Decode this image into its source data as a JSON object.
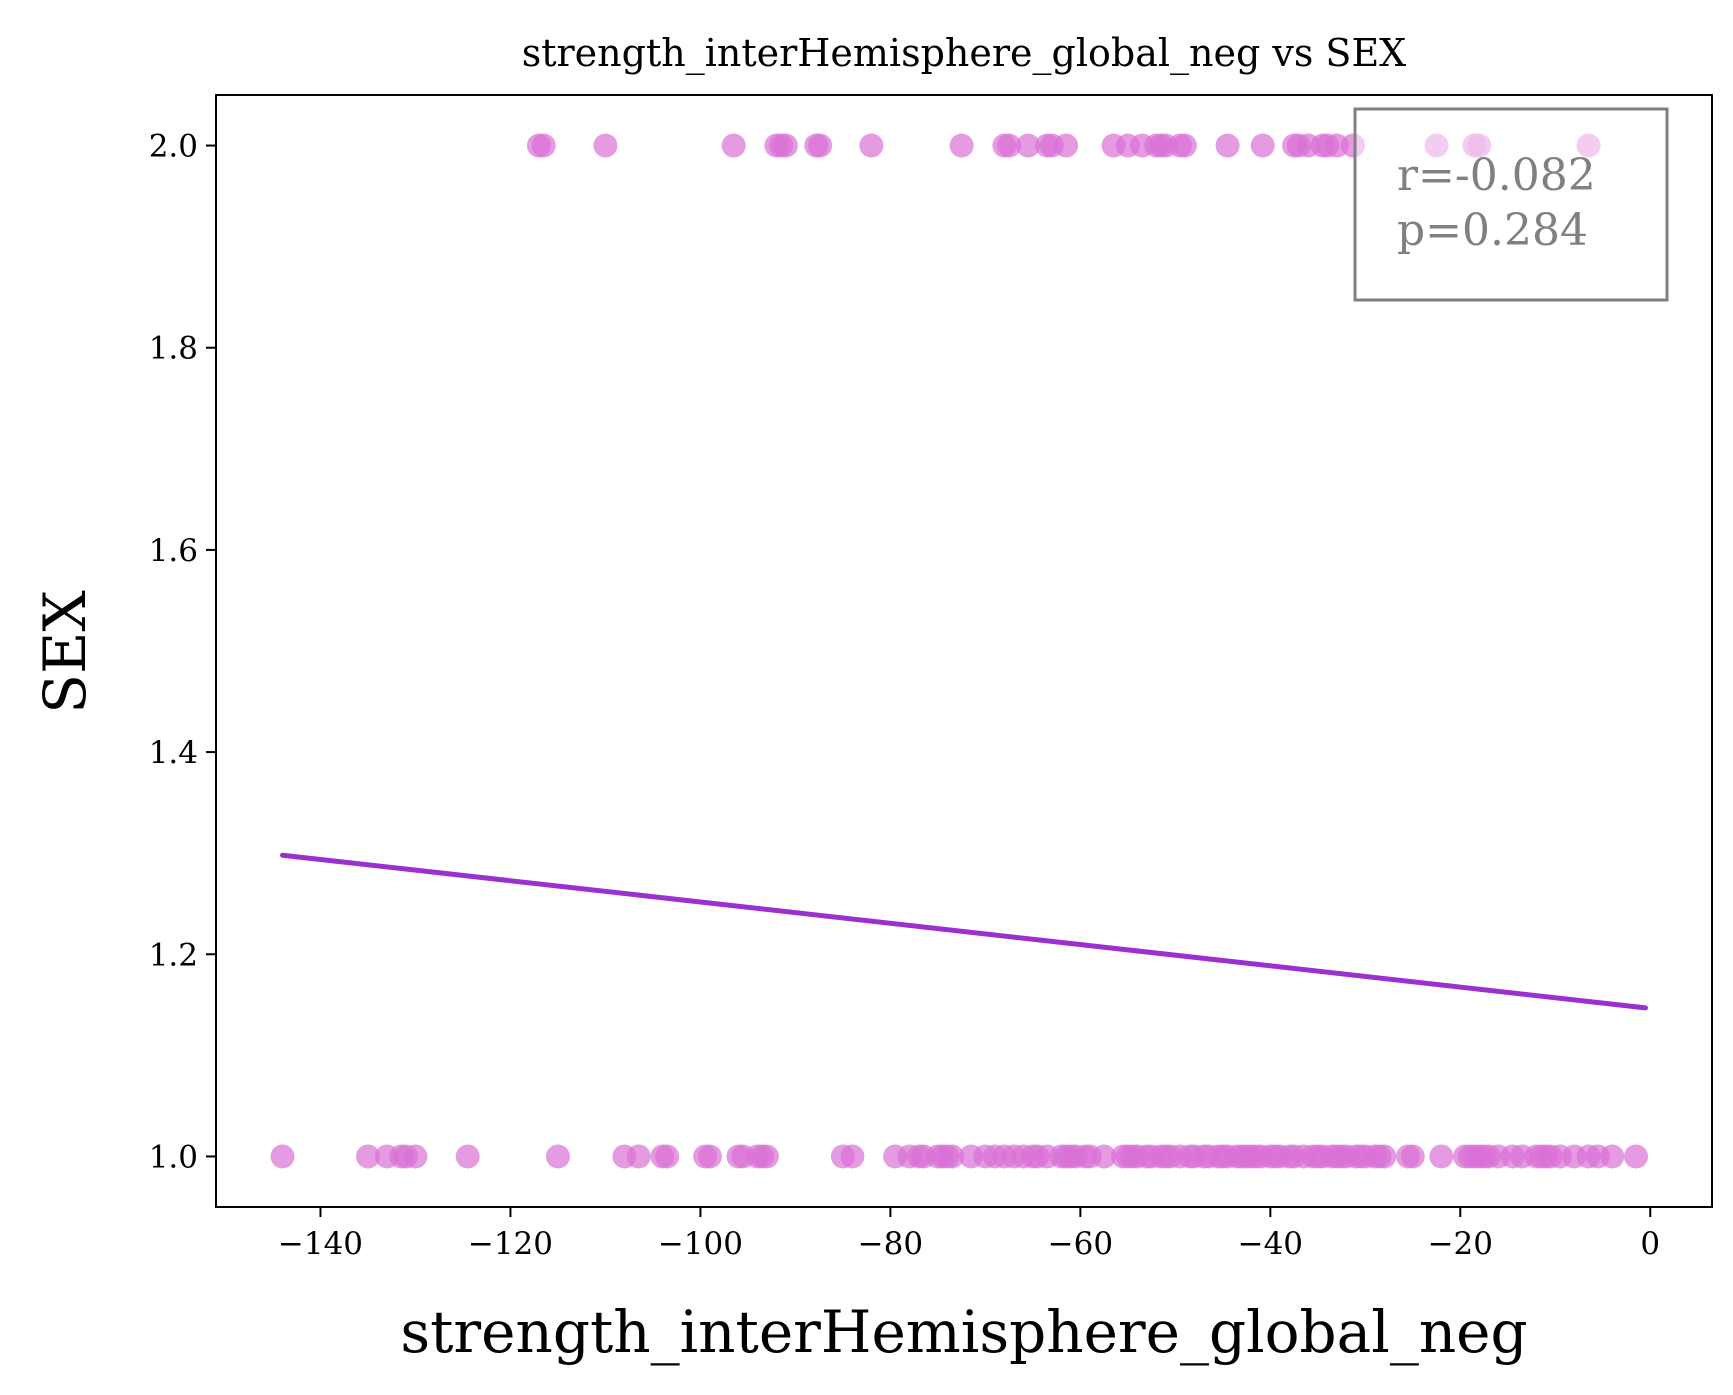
{
  "chart_data": {
    "type": "scatter",
    "title": "strength_interHemisphere_global_neg vs SEX",
    "xlabel": "strength_interHemisphere_global_neg",
    "ylabel": "SEX",
    "xlim": [
      -151,
      6.5
    ],
    "ylim": [
      0.95,
      2.05
    ],
    "x_ticks": [
      {
        "value": -140,
        "label": "−140"
      },
      {
        "value": -120,
        "label": "−120"
      },
      {
        "value": -100,
        "label": "−100"
      },
      {
        "value": -80,
        "label": "−80"
      },
      {
        "value": -60,
        "label": "−60"
      },
      {
        "value": -40,
        "label": "−40"
      },
      {
        "value": -20,
        "label": "−20"
      },
      {
        "value": 0,
        "label": "0"
      }
    ],
    "y_ticks": [
      {
        "value": 1.0,
        "label": "1.0"
      },
      {
        "value": 1.2,
        "label": "1.2"
      },
      {
        "value": 1.4,
        "label": "1.4"
      },
      {
        "value": 1.6,
        "label": "1.6"
      },
      {
        "value": 1.8,
        "label": "1.8"
      },
      {
        "value": 2.0,
        "label": "2.0"
      }
    ],
    "grid": false,
    "series": [
      {
        "color": "#da70d6",
        "points_y2": [
          -117,
          -116.5,
          -110,
          -96.5,
          -92,
          -91.5,
          -91,
          -87.8,
          -87.4,
          -82,
          -72.5,
          -68,
          -67.5,
          -65.5,
          -63.5,
          -63,
          -61.5,
          -56.5,
          -55,
          -53.5,
          -52,
          -51.5,
          -51,
          -49.5,
          -49,
          -44.5,
          -40.8,
          -37.5,
          -37,
          -36,
          -34.5,
          -34,
          -33,
          -31.3,
          -22.5,
          -18.5,
          -18,
          -6.5
        ],
        "points_y1": [
          -144,
          -135,
          -133,
          -131.5,
          -131,
          -130,
          -124.5,
          -115,
          -108,
          -106.5,
          -104,
          -103.5,
          -99.5,
          -99,
          -96,
          -95.5,
          -94,
          -93.5,
          -93,
          -85,
          -84,
          -79.5,
          -78,
          -77,
          -76.5,
          -75,
          -74.5,
          -74,
          -73.5,
          -71.5,
          -70,
          -69,
          -68,
          -67,
          -66,
          -65,
          -64.5,
          -63.5,
          -62,
          -61.5,
          -61,
          -60.5,
          -59.5,
          -59,
          -57.5,
          -55.5,
          -55,
          -54.5,
          -54,
          -53,
          -52.5,
          -51.5,
          -51,
          -50.5,
          -49.5,
          -48.5,
          -48,
          -47,
          -46.5,
          -45.5,
          -45,
          -44.5,
          -43.5,
          -43,
          -42.5,
          -42,
          -41.5,
          -41,
          -40,
          -39.5,
          -39,
          -38,
          -37.5,
          -36.5,
          -35.5,
          -35,
          -34.5,
          -33.5,
          -33,
          -32.5,
          -32,
          -31,
          -30.5,
          -30,
          -29,
          -28.5,
          -28,
          -25.5,
          -25,
          -22,
          -19.5,
          -19,
          -18.5,
          -18,
          -17.5,
          -17,
          -16,
          -14.5,
          -13.5,
          -12,
          -11.5,
          -11,
          -10.5,
          -9.5,
          -8,
          -6.5,
          -5.5,
          -4,
          -1.5
        ]
      }
    ],
    "regression_line": {
      "color": "#9b30d0",
      "x": [
        -144,
        -0.5
      ],
      "y": [
        1.298,
        1.147
      ]
    },
    "stats_box": {
      "r": "r=-0.082",
      "p": "p=0.284",
      "placement": "top-right"
    }
  }
}
